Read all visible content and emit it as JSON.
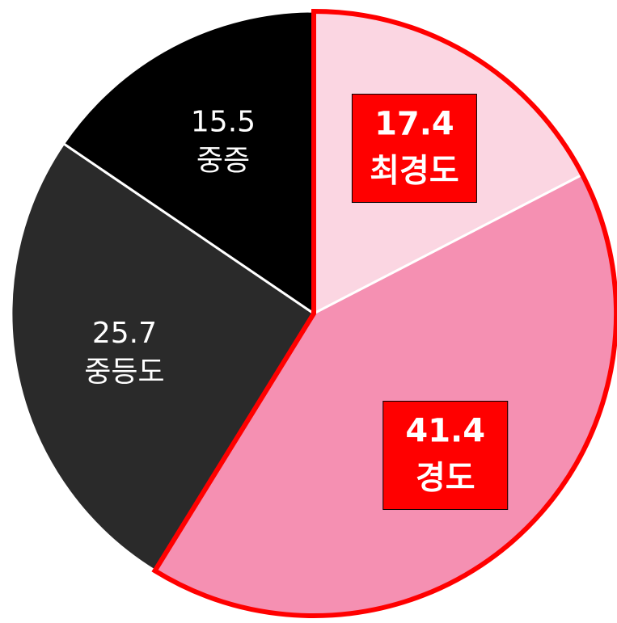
{
  "chart_data": {
    "type": "pie",
    "categories": [
      "최경도",
      "경도",
      "중등도",
      "중증"
    ],
    "values": [
      17.4,
      41.4,
      25.7,
      15.5
    ],
    "colors": [
      "#fbd6e2",
      "#f590b2",
      "#2a2a2a",
      "#000000"
    ],
    "highlight": [
      true,
      true,
      false,
      false
    ],
    "highlight_color": "#ff0000"
  }
}
